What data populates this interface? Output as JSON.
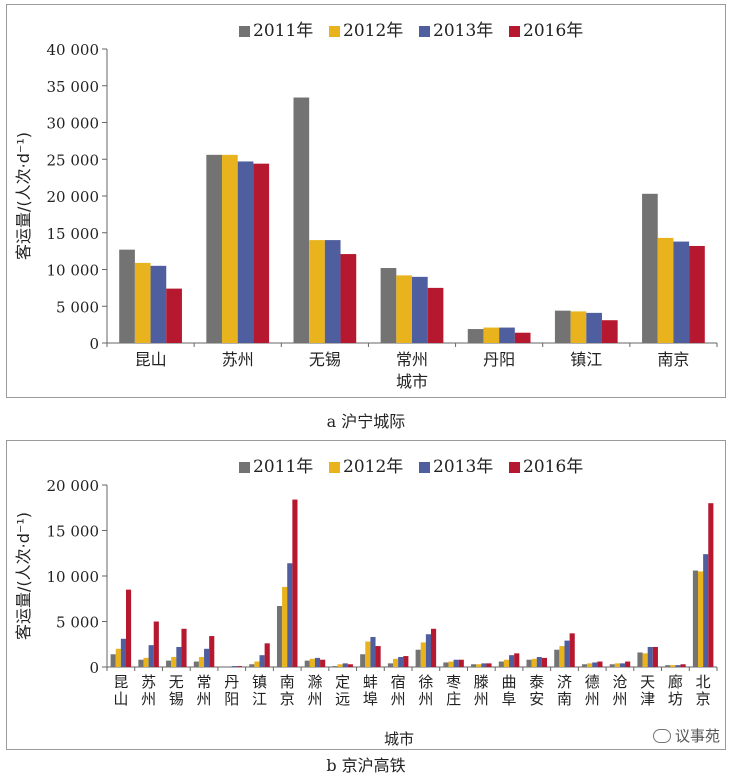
{
  "colors": {
    "2011": "#737373",
    "2012": "#e8b31c",
    "2013": "#4f5e9e",
    "2016": "#b5182f"
  },
  "chart_data": [
    {
      "type": "bar",
      "caption": "a 沪宁城际",
      "xlabel": "城市",
      "ylabel": "客运量/(人次·d⁻¹)",
      "ylim": [
        0,
        40000
      ],
      "yticks": [
        0,
        5000,
        10000,
        15000,
        20000,
        25000,
        30000,
        35000,
        40000
      ],
      "ytick_labels": [
        "0",
        "5 000",
        "10 000",
        "15 000",
        "20 000",
        "25 000",
        "30 000",
        "35 000",
        "40 000"
      ],
      "legend_position": "top",
      "categories": [
        "昆山",
        "苏州",
        "无锡",
        "常州",
        "丹阳",
        "镇江",
        "南京"
      ],
      "series": [
        {
          "name": "2011年",
          "values": [
            12700,
            25600,
            33400,
            10200,
            1900,
            4400,
            20300
          ]
        },
        {
          "name": "2012年",
          "values": [
            10900,
            25600,
            14000,
            9200,
            2100,
            4300,
            14300
          ]
        },
        {
          "name": "2013年",
          "values": [
            10500,
            24700,
            14000,
            9000,
            2100,
            4100,
            13800
          ]
        },
        {
          "name": "2016年",
          "values": [
            7400,
            24400,
            12100,
            7500,
            1400,
            3100,
            13200
          ]
        }
      ]
    },
    {
      "type": "bar",
      "caption": "b 京沪高铁",
      "xlabel": "城市",
      "ylabel": "客运量/(人次·d⁻¹)",
      "ylim": [
        0,
        20000
      ],
      "yticks": [
        0,
        5000,
        10000,
        15000,
        20000
      ],
      "ytick_labels": [
        "0",
        "5 000",
        "10 000",
        "15 000",
        "20 000"
      ],
      "legend_position": "top",
      "categories": [
        "昆山",
        "苏州",
        "无锡",
        "常州",
        "丹阳",
        "镇江",
        "南京",
        "滁州",
        "定远",
        "蚌埠",
        "宿州",
        "徐州",
        "枣庄",
        "滕州",
        "曲阜",
        "泰安",
        "济南",
        "德州",
        "沧州",
        "天津",
        "廊坊",
        "北京"
      ],
      "series": [
        {
          "name": "2011年",
          "values": [
            1400,
            800,
            700,
            600,
            0,
            300,
            6700,
            700,
            100,
            1400,
            400,
            1900,
            500,
            300,
            600,
            800,
            1900,
            300,
            300,
            1600,
            200,
            10600
          ]
        },
        {
          "name": "2012年",
          "values": [
            2000,
            1000,
            1100,
            1100,
            0,
            600,
            8800,
            900,
            300,
            2800,
            900,
            2700,
            600,
            300,
            800,
            900,
            2300,
            400,
            400,
            1500,
            200,
            10500
          ]
        },
        {
          "name": "2013年",
          "values": [
            3100,
            2400,
            2200,
            2000,
            100,
            1300,
            11400,
            1000,
            400,
            3300,
            1100,
            3600,
            800,
            400,
            1300,
            1100,
            2900,
            500,
            400,
            2200,
            200,
            12400
          ]
        },
        {
          "name": "2016年",
          "values": [
            8500,
            5000,
            4200,
            3400,
            100,
            2600,
            18400,
            800,
            300,
            2300,
            1200,
            4200,
            800,
            400,
            1500,
            1000,
            3700,
            600,
            600,
            2200,
            300,
            18000
          ]
        }
      ]
    }
  ],
  "watermark": "议事苑"
}
